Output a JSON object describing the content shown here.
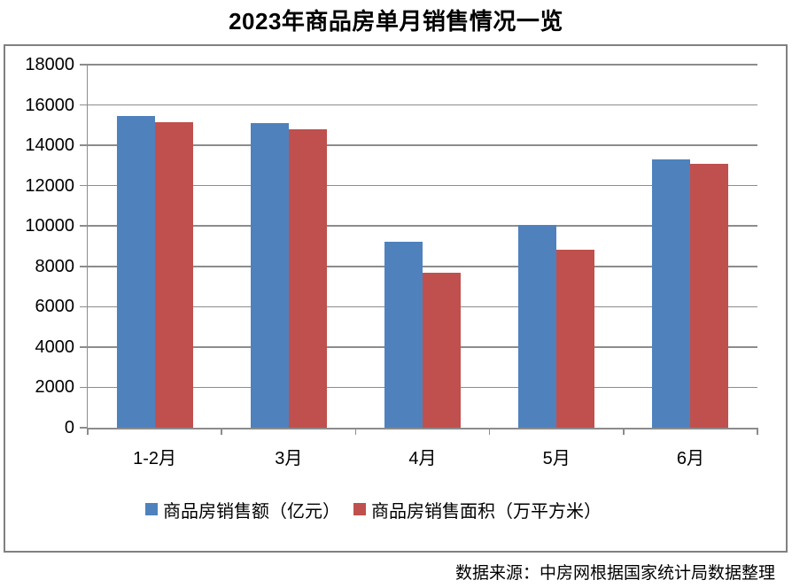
{
  "page": {
    "source_note": "数据来源：中房网根据国家统计局数据整理"
  },
  "chart_data": {
    "type": "bar",
    "title": "2023年商品房单月销售情况一览",
    "categories": [
      "1-2月",
      "3月",
      "4月",
      "5月",
      "6月"
    ],
    "series": [
      {
        "name": "商品房销售额（亿元）",
        "color": "#4F81BD",
        "values": [
          15449,
          15096,
          9205,
          10037,
          13305
        ]
      },
      {
        "name": "商品房销售面积（万平方米）",
        "color": "#C0504D",
        "values": [
          15133,
          14813,
          7690,
          8804,
          13075
        ]
      }
    ],
    "xlabel": "",
    "ylabel": "",
    "ylim": [
      0,
      18000
    ],
    "ytick_step": 2000,
    "ytick_labels": [
      "0",
      "2000",
      "4000",
      "6000",
      "8000",
      "10000",
      "12000",
      "14000",
      "16000",
      "18000"
    ],
    "grid": true,
    "legend_position": "bottom",
    "colors": {
      "axis": "#8C8C8C",
      "gridline": "#8C8C8C",
      "plot_border": "#808080",
      "text": "#000000",
      "background": "#FFFFFF"
    }
  }
}
